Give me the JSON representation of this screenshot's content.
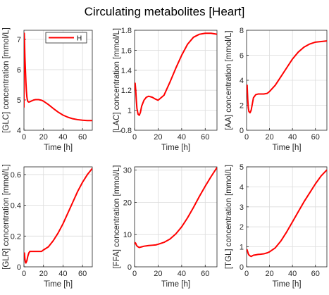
{
  "figure": {
    "title": "Circulating metabolites [Heart]",
    "line_color": "#ff0000"
  },
  "chart_data": [
    {
      "type": "line",
      "title": "",
      "xlabel": "Time [h]",
      "ylabel": "[GLC] concentration [mmol/L]",
      "xlim": [
        0,
        70
      ],
      "ylim": [
        4,
        7.3
      ],
      "xticks": [
        0,
        20,
        40,
        60
      ],
      "yticks": [
        4,
        5,
        6,
        7
      ],
      "grid": true,
      "legend": {
        "entries": [
          "H"
        ],
        "placement": "top-left"
      },
      "series": [
        {
          "name": "H",
          "x": [
            0,
            0.3,
            0.6,
            1,
            1.5,
            2,
            2.5,
            3,
            3.5,
            4,
            5,
            6,
            8,
            10,
            12,
            15,
            18,
            20,
            25,
            30,
            35,
            40,
            45,
            50,
            55,
            60,
            65,
            70
          ],
          "y": [
            4.75,
            7.2,
            6.9,
            6.4,
            6.0,
            5.6,
            5.3,
            5.1,
            5.0,
            4.95,
            4.93,
            4.94,
            4.97,
            5.0,
            5.01,
            5.01,
            4.99,
            4.96,
            4.85,
            4.72,
            4.6,
            4.5,
            4.43,
            4.38,
            4.35,
            4.33,
            4.32,
            4.32
          ]
        }
      ]
    },
    {
      "type": "line",
      "title": "",
      "xlabel": "Time [h]",
      "ylabel": "[LAC] concentration [mmol/L]",
      "xlim": [
        0,
        70
      ],
      "ylim": [
        0.8,
        1.8
      ],
      "xticks": [
        0,
        20,
        40,
        60
      ],
      "yticks": [
        0.8,
        1,
        1.2,
        1.4,
        1.6,
        1.8
      ],
      "grid": true,
      "series": [
        {
          "x": [
            0,
            0.5,
            1,
            1.5,
            2,
            3,
            4,
            5,
            6,
            8,
            10,
            12,
            15,
            18,
            20,
            25,
            30,
            35,
            40,
            45,
            50,
            55,
            60,
            65,
            70
          ],
          "y": [
            1.2,
            1.27,
            1.2,
            1.1,
            1.02,
            0.96,
            0.95,
            0.98,
            1.04,
            1.1,
            1.13,
            1.14,
            1.13,
            1.11,
            1.1,
            1.15,
            1.28,
            1.42,
            1.55,
            1.66,
            1.73,
            1.76,
            1.77,
            1.77,
            1.76
          ]
        }
      ]
    },
    {
      "type": "line",
      "title": "",
      "xlabel": "Time [h]",
      "ylabel": "[AA] concentration [mmol/L]",
      "xlim": [
        0,
        70
      ],
      "ylim": [
        0,
        8
      ],
      "xticks": [
        0,
        20,
        40,
        60
      ],
      "yticks": [
        0,
        2,
        4,
        6,
        8
      ],
      "grid": true,
      "series": [
        {
          "x": [
            0,
            0.5,
            1,
            1.5,
            2,
            3,
            4,
            5,
            6,
            8,
            10,
            12,
            15,
            18,
            20,
            25,
            30,
            35,
            40,
            45,
            50,
            55,
            60,
            65,
            70
          ],
          "y": [
            3.0,
            3.6,
            2.5,
            1.8,
            1.5,
            1.4,
            1.6,
            2.1,
            2.6,
            2.85,
            2.9,
            2.9,
            2.9,
            2.95,
            3.1,
            3.6,
            4.3,
            5.0,
            5.7,
            6.25,
            6.65,
            6.9,
            7.05,
            7.1,
            7.15
          ]
        }
      ]
    },
    {
      "type": "line",
      "title": "",
      "xlabel": "Time [h]",
      "ylabel": "[GLR] concentration [mmol/L]",
      "xlim": [
        0,
        70
      ],
      "ylim": [
        0,
        0.65
      ],
      "xticks": [
        0,
        20,
        40,
        60
      ],
      "yticks": [
        0,
        0.2,
        0.4,
        0.6
      ],
      "grid": true,
      "series": [
        {
          "x": [
            0,
            0.5,
            1,
            1.5,
            2,
            3,
            4,
            5,
            6,
            8,
            10,
            12,
            15,
            18,
            20,
            25,
            30,
            35,
            40,
            45,
            50,
            55,
            60,
            65,
            70
          ],
          "y": [
            0.05,
            0.09,
            0.05,
            0.03,
            0.025,
            0.04,
            0.07,
            0.09,
            0.1,
            0.1,
            0.1,
            0.1,
            0.1,
            0.1,
            0.11,
            0.13,
            0.17,
            0.22,
            0.28,
            0.35,
            0.42,
            0.49,
            0.55,
            0.6,
            0.64
          ]
        }
      ]
    },
    {
      "type": "line",
      "title": "",
      "xlabel": "Time [h]",
      "ylabel": "[FFA] concentration [mmol/L]",
      "xlim": [
        0,
        70
      ],
      "ylim": [
        0,
        31
      ],
      "xticks": [
        0,
        20,
        40,
        60
      ],
      "yticks": [
        0,
        10,
        20,
        30
      ],
      "grid": true,
      "series": [
        {
          "x": [
            0,
            0.5,
            1,
            1.5,
            2,
            3,
            4,
            5,
            6,
            8,
            10,
            12,
            15,
            18,
            20,
            25,
            30,
            35,
            40,
            45,
            50,
            55,
            60,
            65,
            70
          ],
          "y": [
            7.0,
            7.5,
            7.3,
            6.8,
            6.5,
            6.2,
            6.0,
            6.1,
            6.2,
            6.4,
            6.5,
            6.6,
            6.7,
            6.8,
            7.0,
            7.6,
            8.6,
            10.2,
            12.4,
            15.2,
            18.4,
            21.8,
            25.0,
            28.0,
            30.8
          ]
        }
      ]
    },
    {
      "type": "line",
      "title": "",
      "xlabel": "Time [h]",
      "ylabel": "[TGL] concentration [mmol/L]",
      "xlim": [
        0,
        70
      ],
      "ylim": [
        0,
        5
      ],
      "xticks": [
        0,
        20,
        40,
        60
      ],
      "yticks": [
        0,
        1,
        2,
        3,
        4,
        5
      ],
      "grid": true,
      "series": [
        {
          "x": [
            0,
            0.5,
            1,
            1.5,
            2,
            3,
            4,
            5,
            6,
            8,
            10,
            12,
            15,
            18,
            20,
            25,
            30,
            35,
            40,
            45,
            50,
            55,
            60,
            65,
            70
          ],
          "y": [
            0.8,
            0.85,
            0.75,
            0.65,
            0.6,
            0.55,
            0.52,
            0.55,
            0.58,
            0.6,
            0.62,
            0.63,
            0.65,
            0.7,
            0.75,
            0.95,
            1.3,
            1.75,
            2.25,
            2.75,
            3.25,
            3.7,
            4.15,
            4.55,
            4.85
          ]
        }
      ]
    }
  ]
}
